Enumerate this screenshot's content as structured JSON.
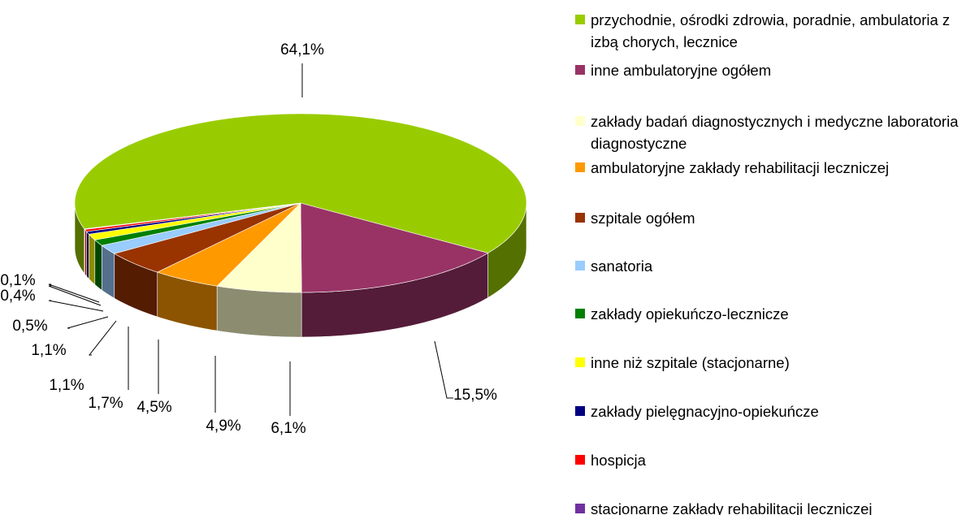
{
  "chart_data": {
    "type": "pie3d",
    "categories": [
      "przychodnie, ośrodki zdrowia, poradnie, ambulatoria z izbą chorych, lecznice",
      "inne ambulatoryjne ogółem",
      "zakłady badań diagnostycznych i medyczne laboratoria diagnostyczne",
      "ambulatoryjne zakłady rehabilitacji leczniczej",
      "szpitale ogółem",
      "sanatoria",
      "zakłady opiekuńczo-lecznicze",
      "inne niż szpitale (stacjonarne)",
      "zakłady pielęgnacyjno-opiekuńcze",
      "hospicja",
      "stacjonarne zakłady rehabilitacji leczniczej"
    ],
    "values": [
      64.1,
      15.5,
      6.1,
      4.9,
      4.5,
      1.7,
      1.1,
      1.1,
      0.5,
      0.4,
      0.1
    ],
    "value_labels": [
      "64,1%",
      "15,5%",
      "6,1%",
      "4,9%",
      "4,5%",
      "1,7%",
      "1,1%",
      "1,1%",
      "0,5%",
      "0,4%",
      "0,1%"
    ],
    "colors": [
      "#99cc00",
      "#993366",
      "#ffffcc",
      "#ff9900",
      "#993300",
      "#99ccff",
      "#008000",
      "#ffff00",
      "#000080",
      "#ff0000",
      "#7030a0"
    ],
    "legend": "right"
  }
}
